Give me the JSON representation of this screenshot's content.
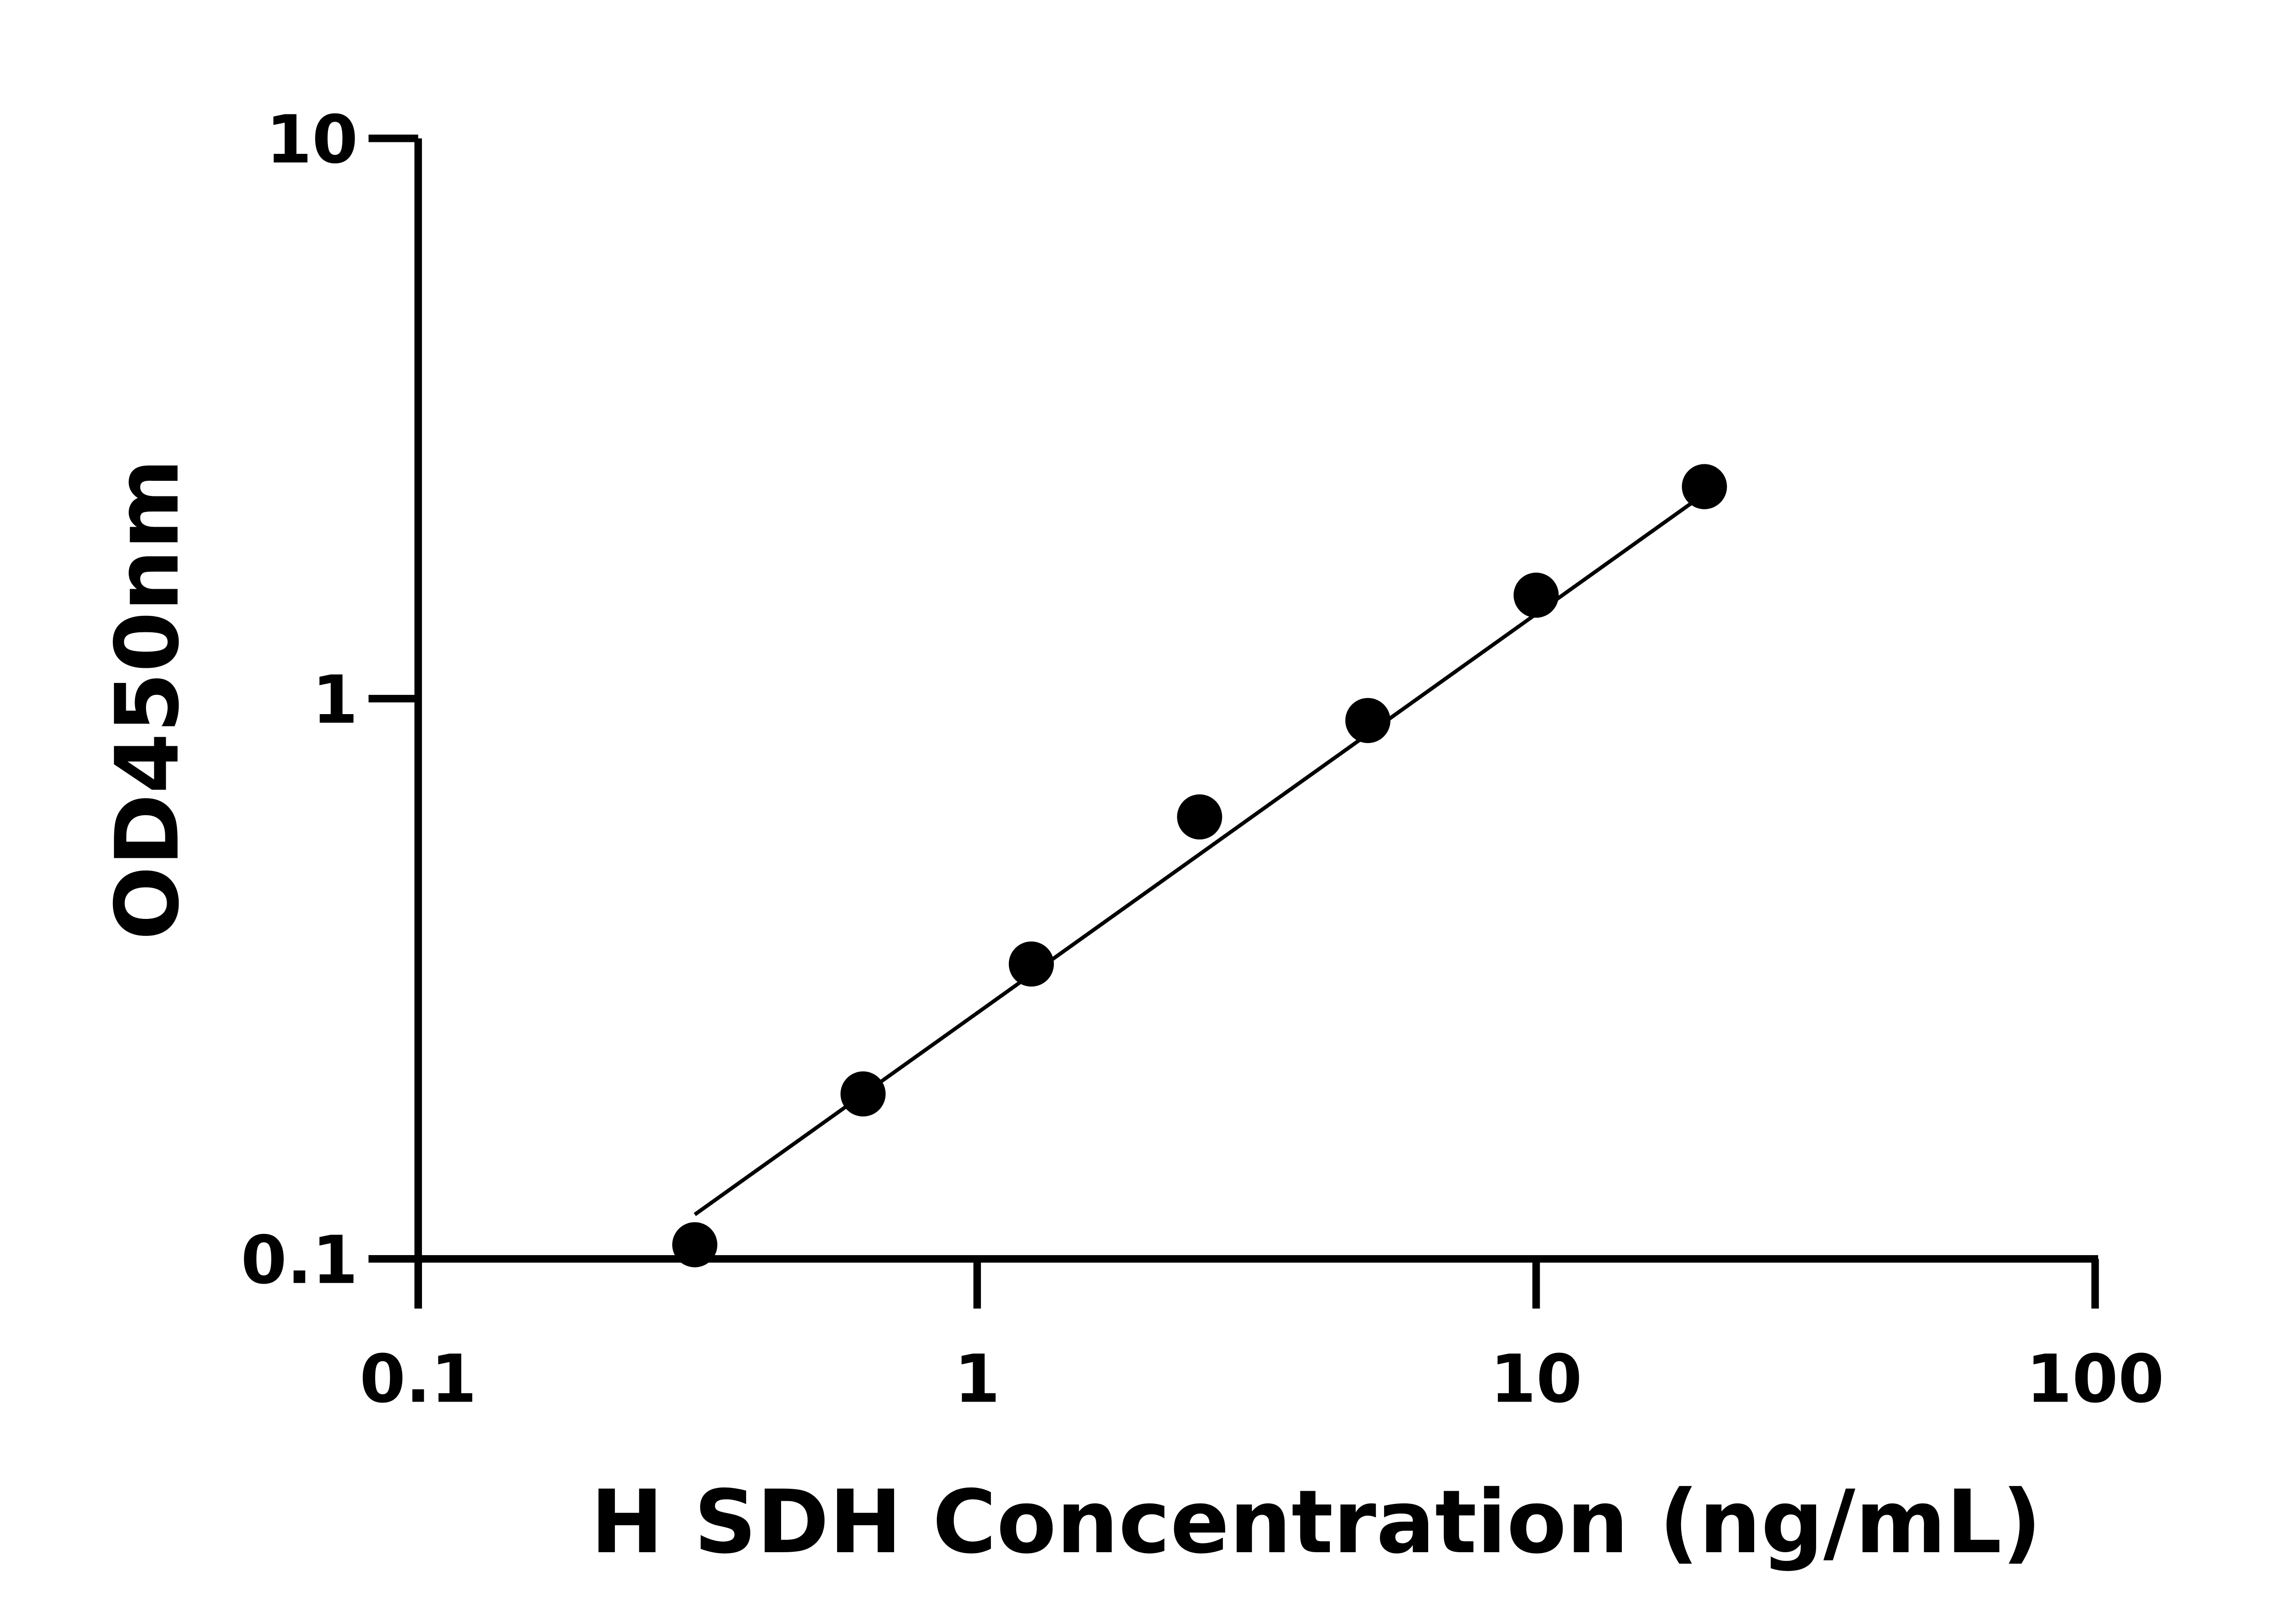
{
  "chart_data": {
    "type": "scatter",
    "x_label": "H SDH Concentration (ng/mL)",
    "y_label": "OD450nm",
    "x": [
      0.3125,
      0.625,
      1.25,
      2.5,
      5,
      10,
      20
    ],
    "values": [
      0.106,
      0.197,
      0.336,
      0.615,
      0.914,
      1.53,
      2.39
    ],
    "color": "#000000",
    "fit": {
      "x": [
        0.3125,
        20
      ],
      "values": [
        0.12,
        2.32
      ]
    },
    "xlim": [
      0.1,
      100
    ],
    "xticks": [
      0.1,
      1,
      10,
      100
    ],
    "ylim": [
      0.1,
      10
    ],
    "yticks": [
      0.1,
      1,
      10
    ],
    "log_x": true,
    "log_y": true
  }
}
